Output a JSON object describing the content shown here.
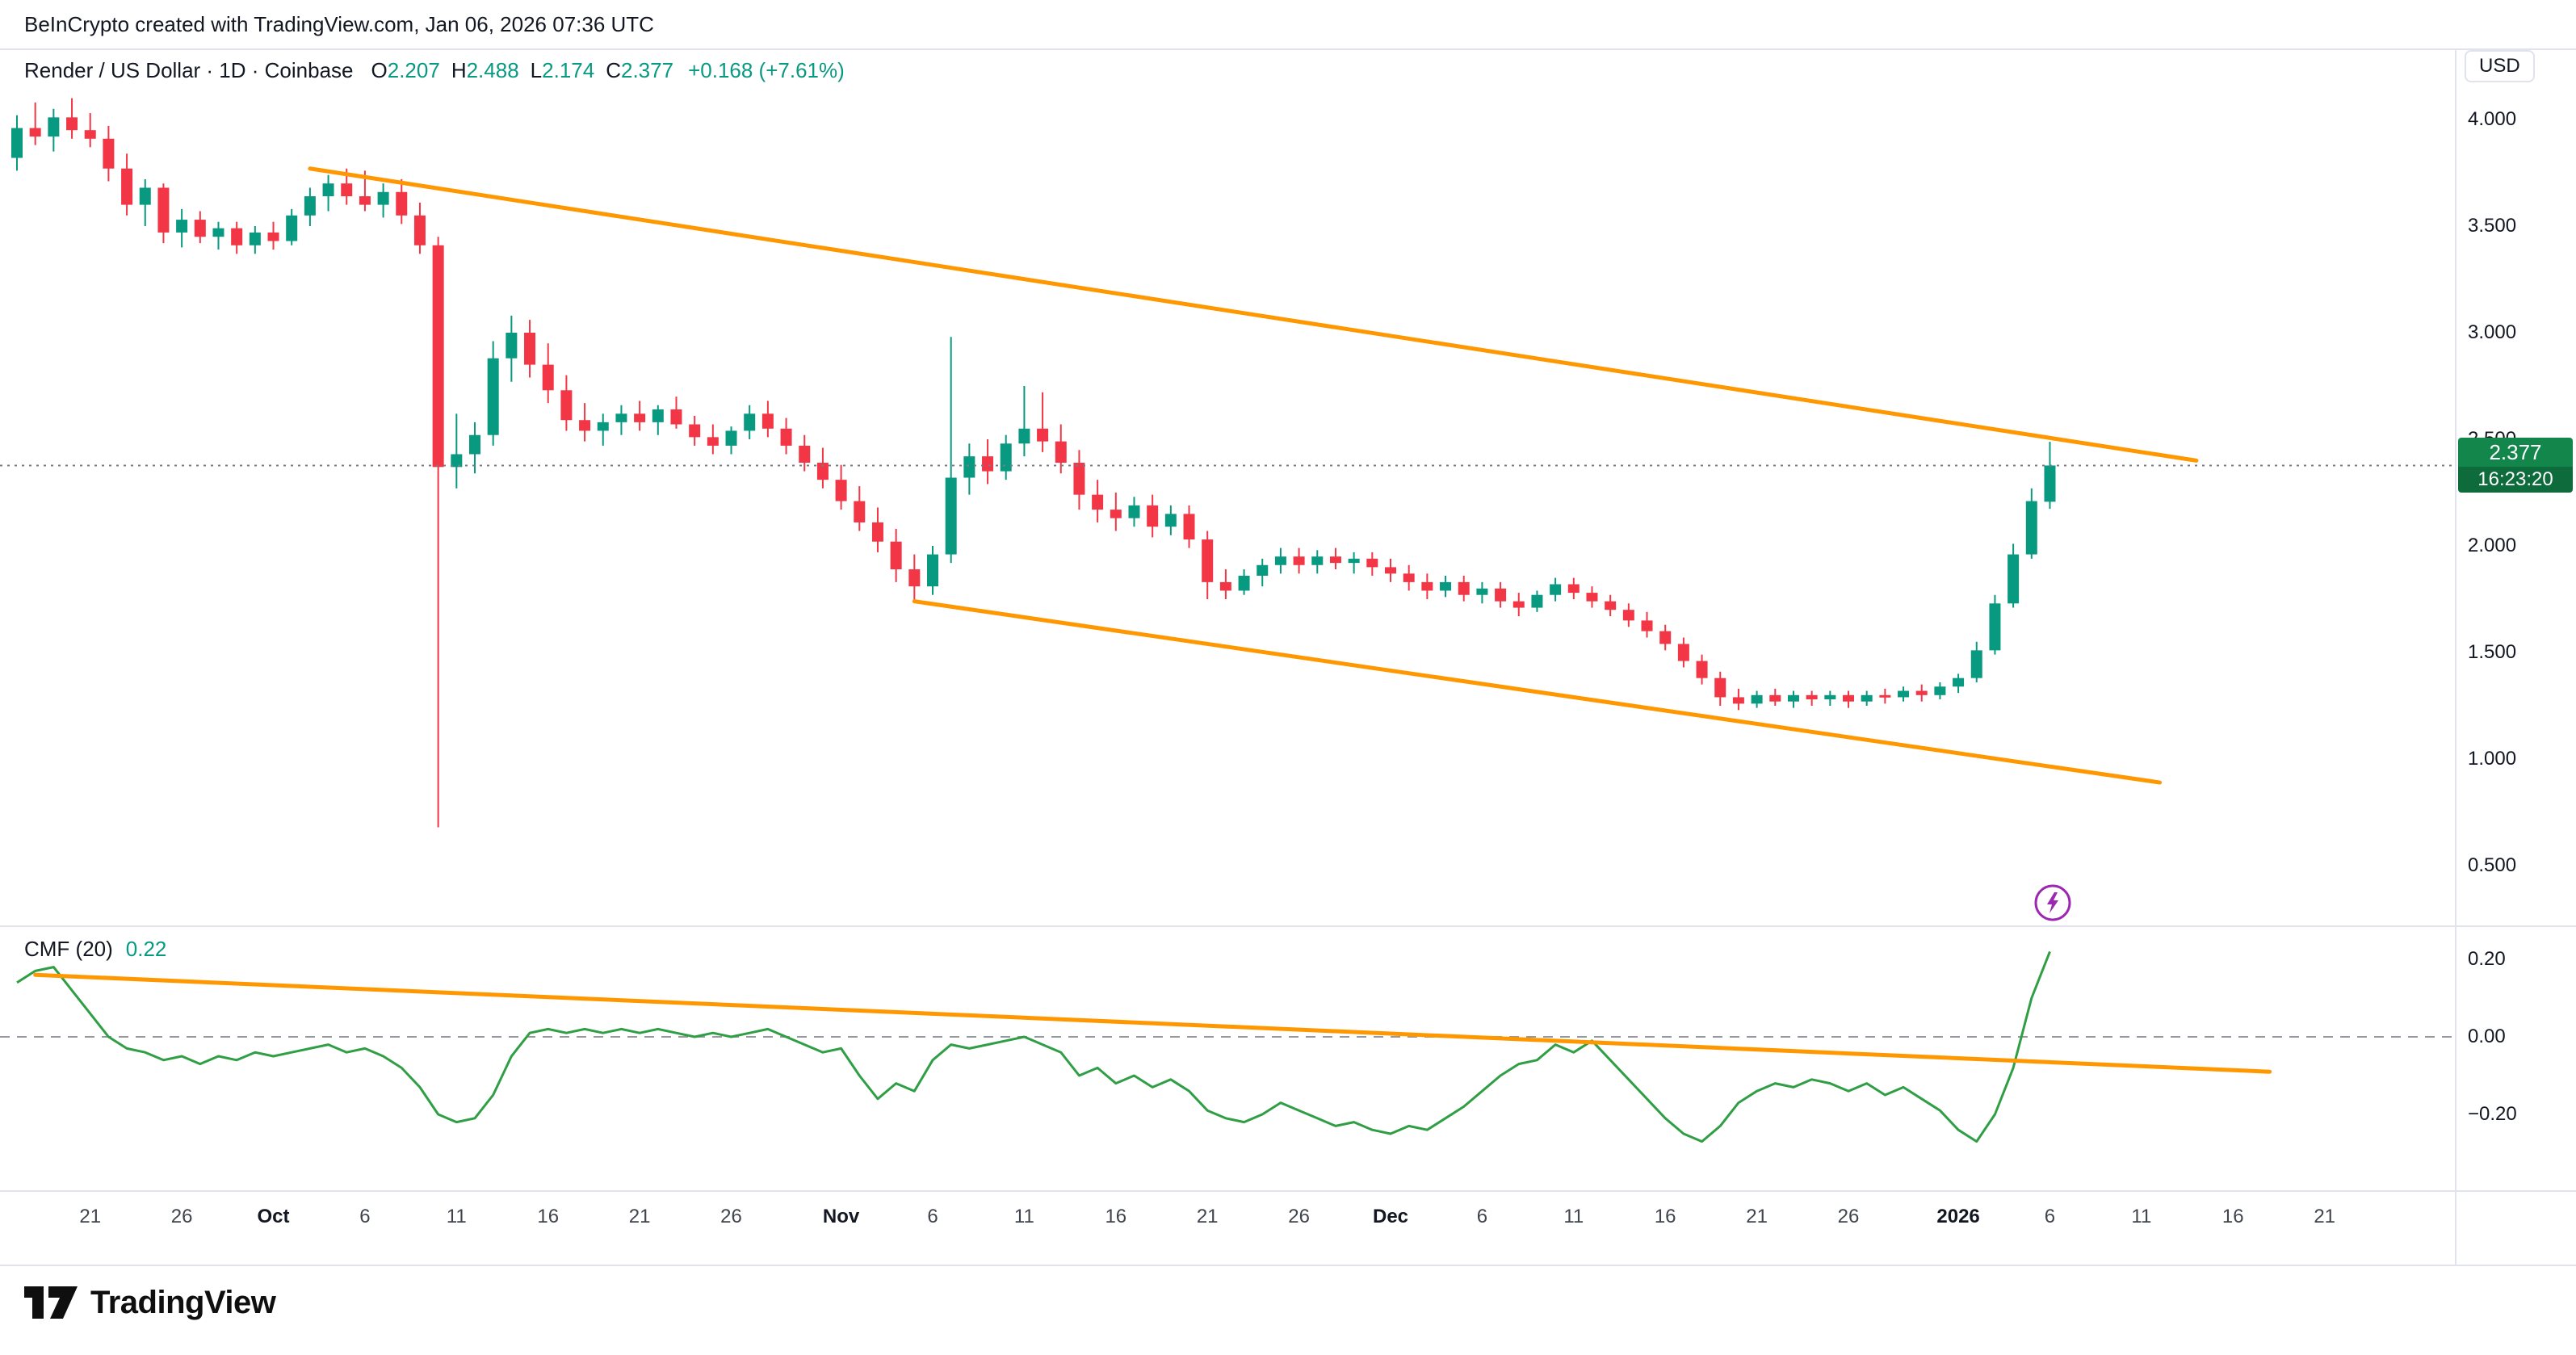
{
  "header": {
    "attribution": "BeInCrypto created with TradingView.com, Jan 06, 2026 07:36 UTC"
  },
  "legend": {
    "title": "Render / US Dollar · 1D · Coinbase",
    "items": [
      {
        "k": "O",
        "v": "2.207"
      },
      {
        "k": "H",
        "v": "2.488"
      },
      {
        "k": "L",
        "v": "2.174"
      },
      {
        "k": "C",
        "v": "2.377"
      }
    ],
    "change": "+0.168 (+7.61%)"
  },
  "price_axis": {
    "currency": "USD",
    "ticks": [
      {
        "label": "4.000",
        "price": 4.0
      },
      {
        "label": "3.500",
        "price": 3.5
      },
      {
        "label": "3.000",
        "price": 3.0
      },
      {
        "label": "2.500",
        "price": 2.5
      },
      {
        "label": "2.000",
        "price": 2.0
      },
      {
        "label": "1.500",
        "price": 1.5
      },
      {
        "label": "1.000",
        "price": 1.0
      },
      {
        "label": "0.500",
        "price": 0.5
      }
    ]
  },
  "price_badge": {
    "price": "2.377",
    "countdown": "16:23:20"
  },
  "cmf": {
    "title": "CMF (20)",
    "value": "0.22",
    "ticks": [
      {
        "label": "0.20",
        "value": 0.2
      },
      {
        "label": "0.00",
        "value": 0.0
      },
      {
        "label": "−0.20",
        "value": -0.2
      }
    ]
  },
  "time_axis": {
    "ticks": [
      {
        "label": "21",
        "day": 4
      },
      {
        "label": "26",
        "day": 9
      },
      {
        "label": "Oct",
        "day": 14,
        "major": true
      },
      {
        "label": "6",
        "day": 19
      },
      {
        "label": "11",
        "day": 24
      },
      {
        "label": "16",
        "day": 29
      },
      {
        "label": "21",
        "day": 34
      },
      {
        "label": "26",
        "day": 39
      },
      {
        "label": "Nov",
        "day": 45,
        "major": true
      },
      {
        "label": "6",
        "day": 50
      },
      {
        "label": "11",
        "day": 55
      },
      {
        "label": "16",
        "day": 60
      },
      {
        "label": "21",
        "day": 65
      },
      {
        "label": "26",
        "day": 70
      },
      {
        "label": "Dec",
        "day": 75,
        "major": true
      },
      {
        "label": "6",
        "day": 80
      },
      {
        "label": "11",
        "day": 85
      },
      {
        "label": "16",
        "day": 90
      },
      {
        "label": "21",
        "day": 95
      },
      {
        "label": "26",
        "day": 100
      },
      {
        "label": "2026",
        "day": 106,
        "major": true
      },
      {
        "label": "6",
        "day": 111
      },
      {
        "label": "11",
        "day": 116
      },
      {
        "label": "16",
        "day": 121
      },
      {
        "label": "21",
        "day": 126
      }
    ]
  },
  "footer": {
    "brand": "TradingView"
  },
  "colors": {
    "up": "#089981",
    "down": "#f23645",
    "trendline": "#ff9800",
    "cmf_line": "#2f9e44",
    "accent": "#089981",
    "badge_price_bg": "#12864b",
    "badge_countdown_bg": "#0d6b3c",
    "flash_icon": "#9c27b0",
    "dotted_price_line": "#787b86",
    "zero_line": "#9598a1"
  },
  "chart_data": [
    {
      "type": "candlestick",
      "title": "Render / US Dollar, 1D, Coinbase",
      "x_start_date": "2025-09-17",
      "x_unit": "day",
      "ylim": [
        0.35,
        4.25
      ],
      "y_ticks": [
        "4.000",
        "3.500",
        "3.000",
        "2.500",
        "2.000",
        "1.500",
        "1.000",
        "0.500"
      ],
      "last_price": 2.377,
      "countdown": "16:23:20",
      "ohlc": [
        [
          3.82,
          4.02,
          3.76,
          3.96
        ],
        [
          3.96,
          4.08,
          3.88,
          3.92
        ],
        [
          3.92,
          4.05,
          3.85,
          4.01
        ],
        [
          4.01,
          4.1,
          3.91,
          3.95
        ],
        [
          3.95,
          4.03,
          3.87,
          3.91
        ],
        [
          3.91,
          3.97,
          3.71,
          3.77
        ],
        [
          3.77,
          3.84,
          3.55,
          3.6
        ],
        [
          3.6,
          3.72,
          3.5,
          3.68
        ],
        [
          3.68,
          3.7,
          3.42,
          3.47
        ],
        [
          3.47,
          3.58,
          3.4,
          3.53
        ],
        [
          3.53,
          3.57,
          3.42,
          3.45
        ],
        [
          3.45,
          3.52,
          3.39,
          3.49
        ],
        [
          3.49,
          3.52,
          3.37,
          3.41
        ],
        [
          3.41,
          3.5,
          3.37,
          3.47
        ],
        [
          3.47,
          3.52,
          3.39,
          3.43
        ],
        [
          3.43,
          3.58,
          3.41,
          3.55
        ],
        [
          3.55,
          3.68,
          3.5,
          3.64
        ],
        [
          3.64,
          3.74,
          3.57,
          3.7
        ],
        [
          3.7,
          3.77,
          3.6,
          3.64
        ],
        [
          3.64,
          3.76,
          3.57,
          3.6
        ],
        [
          3.6,
          3.7,
          3.54,
          3.66
        ],
        [
          3.66,
          3.72,
          3.51,
          3.55
        ],
        [
          3.55,
          3.61,
          3.37,
          3.41
        ],
        [
          3.41,
          3.45,
          0.68,
          2.37
        ],
        [
          2.37,
          2.62,
          2.27,
          2.43
        ],
        [
          2.43,
          2.58,
          2.34,
          2.52
        ],
        [
          2.52,
          2.96,
          2.47,
          2.88
        ],
        [
          2.88,
          3.08,
          2.77,
          3.0
        ],
        [
          3.0,
          3.06,
          2.79,
          2.85
        ],
        [
          2.85,
          2.95,
          2.67,
          2.73
        ],
        [
          2.73,
          2.8,
          2.54,
          2.59
        ],
        [
          2.59,
          2.67,
          2.49,
          2.54
        ],
        [
          2.54,
          2.62,
          2.47,
          2.58
        ],
        [
          2.58,
          2.66,
          2.52,
          2.62
        ],
        [
          2.62,
          2.68,
          2.54,
          2.58
        ],
        [
          2.58,
          2.66,
          2.52,
          2.64
        ],
        [
          2.64,
          2.7,
          2.55,
          2.57
        ],
        [
          2.57,
          2.61,
          2.47,
          2.51
        ],
        [
          2.51,
          2.57,
          2.43,
          2.47
        ],
        [
          2.47,
          2.56,
          2.43,
          2.54
        ],
        [
          2.54,
          2.66,
          2.5,
          2.62
        ],
        [
          2.62,
          2.68,
          2.51,
          2.55
        ],
        [
          2.55,
          2.6,
          2.43,
          2.47
        ],
        [
          2.47,
          2.52,
          2.35,
          2.39
        ],
        [
          2.39,
          2.46,
          2.27,
          2.31
        ],
        [
          2.31,
          2.38,
          2.17,
          2.21
        ],
        [
          2.21,
          2.28,
          2.07,
          2.11
        ],
        [
          2.11,
          2.18,
          1.97,
          2.02
        ],
        [
          2.02,
          2.08,
          1.83,
          1.89
        ],
        [
          1.89,
          1.96,
          1.74,
          1.81
        ],
        [
          1.81,
          2.0,
          1.77,
          1.96
        ],
        [
          1.96,
          2.98,
          1.92,
          2.32
        ],
        [
          2.32,
          2.48,
          2.24,
          2.42
        ],
        [
          2.42,
          2.5,
          2.29,
          2.35
        ],
        [
          2.35,
          2.52,
          2.31,
          2.48
        ],
        [
          2.48,
          2.75,
          2.42,
          2.55
        ],
        [
          2.55,
          2.72,
          2.44,
          2.49
        ],
        [
          2.49,
          2.57,
          2.34,
          2.39
        ],
        [
          2.39,
          2.45,
          2.17,
          2.24
        ],
        [
          2.24,
          2.31,
          2.11,
          2.17
        ],
        [
          2.17,
          2.25,
          2.07,
          2.13
        ],
        [
          2.13,
          2.23,
          2.09,
          2.19
        ],
        [
          2.19,
          2.24,
          2.04,
          2.09
        ],
        [
          2.09,
          2.19,
          2.05,
          2.15
        ],
        [
          2.15,
          2.19,
          1.99,
          2.03
        ],
        [
          2.03,
          2.07,
          1.75,
          1.83
        ],
        [
          1.83,
          1.89,
          1.75,
          1.79
        ],
        [
          1.79,
          1.89,
          1.77,
          1.86
        ],
        [
          1.86,
          1.94,
          1.81,
          1.91
        ],
        [
          1.91,
          1.99,
          1.87,
          1.95
        ],
        [
          1.95,
          1.99,
          1.87,
          1.91
        ],
        [
          1.91,
          1.98,
          1.87,
          1.95
        ],
        [
          1.95,
          1.99,
          1.89,
          1.92
        ],
        [
          1.92,
          1.97,
          1.87,
          1.94
        ],
        [
          1.94,
          1.97,
          1.86,
          1.9
        ],
        [
          1.9,
          1.94,
          1.83,
          1.87
        ],
        [
          1.87,
          1.91,
          1.79,
          1.83
        ],
        [
          1.83,
          1.87,
          1.75,
          1.79
        ],
        [
          1.79,
          1.86,
          1.76,
          1.83
        ],
        [
          1.83,
          1.86,
          1.74,
          1.77
        ],
        [
          1.77,
          1.83,
          1.73,
          1.8
        ],
        [
          1.8,
          1.83,
          1.71,
          1.74
        ],
        [
          1.74,
          1.78,
          1.67,
          1.71
        ],
        [
          1.71,
          1.79,
          1.69,
          1.77
        ],
        [
          1.77,
          1.85,
          1.74,
          1.82
        ],
        [
          1.82,
          1.85,
          1.75,
          1.78
        ],
        [
          1.78,
          1.81,
          1.71,
          1.74
        ],
        [
          1.74,
          1.77,
          1.67,
          1.7
        ],
        [
          1.7,
          1.73,
          1.62,
          1.65
        ],
        [
          1.65,
          1.69,
          1.57,
          1.6
        ],
        [
          1.6,
          1.63,
          1.51,
          1.54
        ],
        [
          1.54,
          1.57,
          1.43,
          1.46
        ],
        [
          1.46,
          1.49,
          1.35,
          1.38
        ],
        [
          1.38,
          1.41,
          1.25,
          1.29
        ],
        [
          1.29,
          1.33,
          1.23,
          1.26
        ],
        [
          1.26,
          1.32,
          1.24,
          1.3
        ],
        [
          1.3,
          1.33,
          1.25,
          1.27
        ],
        [
          1.27,
          1.32,
          1.24,
          1.3
        ],
        [
          1.3,
          1.32,
          1.25,
          1.28
        ],
        [
          1.28,
          1.32,
          1.25,
          1.3
        ],
        [
          1.3,
          1.32,
          1.24,
          1.27
        ],
        [
          1.27,
          1.32,
          1.25,
          1.3
        ],
        [
          1.3,
          1.33,
          1.26,
          1.29
        ],
        [
          1.29,
          1.34,
          1.27,
          1.32
        ],
        [
          1.32,
          1.35,
          1.27,
          1.3
        ],
        [
          1.3,
          1.36,
          1.28,
          1.34
        ],
        [
          1.34,
          1.4,
          1.31,
          1.38
        ],
        [
          1.38,
          1.55,
          1.36,
          1.51
        ],
        [
          1.51,
          1.77,
          1.49,
          1.73
        ],
        [
          1.73,
          2.01,
          1.71,
          1.96
        ],
        [
          1.96,
          2.27,
          1.94,
          2.21
        ],
        [
          2.207,
          2.488,
          2.174,
          2.377
        ]
      ],
      "trendlines": [
        {
          "name": "upper-channel",
          "from_day": 16,
          "from_price": 3.77,
          "to_day": 119,
          "to_price": 2.4,
          "color": "#ff9800"
        },
        {
          "name": "lower-channel",
          "from_day": 49,
          "from_price": 1.74,
          "to_day": 117,
          "to_price": 0.89,
          "color": "#ff9800"
        }
      ]
    },
    {
      "type": "line",
      "title": "CMF (20)",
      "last_value": 0.22,
      "ylim": [
        -0.32,
        0.28
      ],
      "y_ticks": [
        "0.20",
        "0.00",
        "−0.20"
      ],
      "values": [
        0.14,
        0.17,
        0.18,
        0.12,
        0.06,
        0.0,
        -0.03,
        -0.04,
        -0.06,
        -0.05,
        -0.07,
        -0.05,
        -0.06,
        -0.04,
        -0.05,
        -0.04,
        -0.03,
        -0.02,
        -0.04,
        -0.03,
        -0.05,
        -0.08,
        -0.13,
        -0.2,
        -0.22,
        -0.21,
        -0.15,
        -0.05,
        0.01,
        0.02,
        0.01,
        0.02,
        0.01,
        0.02,
        0.01,
        0.02,
        0.01,
        0.0,
        0.01,
        0.0,
        0.01,
        0.02,
        0.0,
        -0.02,
        -0.04,
        -0.03,
        -0.1,
        -0.16,
        -0.12,
        -0.14,
        -0.06,
        -0.02,
        -0.03,
        -0.02,
        -0.01,
        0.0,
        -0.02,
        -0.04,
        -0.1,
        -0.08,
        -0.12,
        -0.1,
        -0.13,
        -0.11,
        -0.14,
        -0.19,
        -0.21,
        -0.22,
        -0.2,
        -0.17,
        -0.19,
        -0.21,
        -0.23,
        -0.22,
        -0.24,
        -0.25,
        -0.23,
        -0.24,
        -0.21,
        -0.18,
        -0.14,
        -0.1,
        -0.07,
        -0.06,
        -0.02,
        -0.04,
        -0.01,
        -0.06,
        -0.11,
        -0.16,
        -0.21,
        -0.25,
        -0.27,
        -0.23,
        -0.17,
        -0.14,
        -0.12,
        -0.13,
        -0.11,
        -0.12,
        -0.14,
        -0.12,
        -0.15,
        -0.13,
        -0.16,
        -0.19,
        -0.24,
        -0.27,
        -0.2,
        -0.08,
        0.1,
        0.22
      ],
      "trendline": {
        "from_day": 1,
        "from_value": 0.16,
        "to_day": 123,
        "to_value": -0.09,
        "color": "#ff9800"
      },
      "zero_line": 0
    }
  ]
}
